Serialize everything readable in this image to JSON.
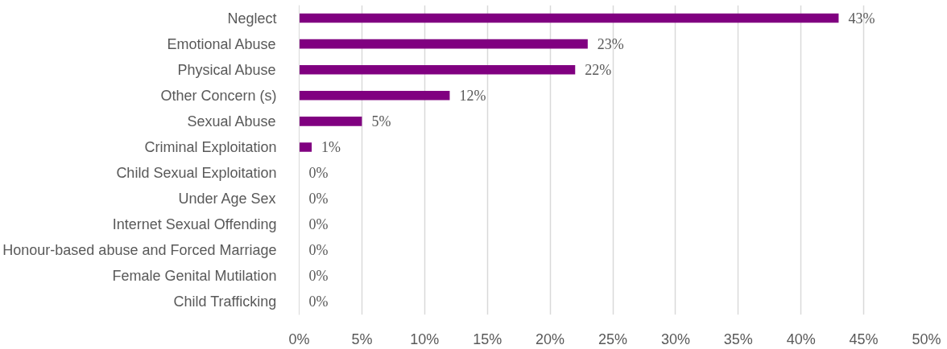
{
  "chart_data": {
    "type": "bar",
    "orientation": "horizontal",
    "categories": [
      "Neglect",
      "Emotional Abuse",
      "Physical Abuse",
      "Other Concern (s)",
      "Sexual Abuse",
      "Criminal Exploitation",
      "Child Sexual Exploitation",
      "Under Age Sex",
      "Internet Sexual Offending",
      "Honour-based abuse and Forced Marriage",
      "Female Genital Mutilation",
      "Child Trafficking"
    ],
    "values": [
      43,
      23,
      22,
      12,
      5,
      1,
      0,
      0,
      0,
      0,
      0,
      0
    ],
    "value_labels": [
      "43%",
      "23%",
      "22%",
      "12%",
      "5%",
      "1%",
      "0%",
      "0%",
      "0%",
      "0%",
      "0%",
      "0%"
    ],
    "color": "#800080",
    "xlim": [
      0,
      50
    ],
    "xticks": [
      {
        "value": 0,
        "label": "0%"
      },
      {
        "value": 5,
        "label": "5%"
      },
      {
        "value": 10,
        "label": "10%"
      },
      {
        "value": 15,
        "label": "15%"
      },
      {
        "value": 20,
        "label": "20%"
      },
      {
        "value": 25,
        "label": "25%"
      },
      {
        "value": 30,
        "label": "30%"
      },
      {
        "value": 35,
        "label": "35%"
      },
      {
        "value": 40,
        "label": "40%"
      },
      {
        "value": 45,
        "label": "45%"
      },
      {
        "value": 50,
        "label": "50%"
      }
    ],
    "grid": "x"
  }
}
